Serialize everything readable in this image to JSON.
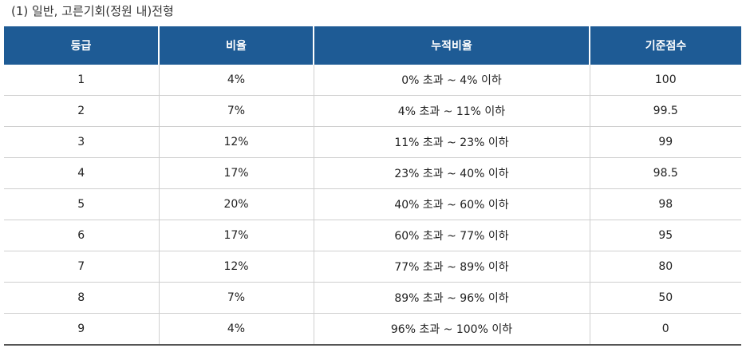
{
  "caption": "(1) 일반, 고른기회(정원 내)전형",
  "table": {
    "headers": [
      "등급",
      "비율",
      "누적비율",
      "기준점수"
    ],
    "rows": [
      [
        "1",
        "4%",
        "0% 초과 ~ 4% 이하",
        "100"
      ],
      [
        "2",
        "7%",
        "4% 초과 ~ 11% 이하",
        "99.5"
      ],
      [
        "3",
        "12%",
        "11% 초과 ~ 23% 이하",
        "99"
      ],
      [
        "4",
        "17%",
        "23% 초과 ~ 40% 이하",
        "98.5"
      ],
      [
        "5",
        "20%",
        "40% 초과 ~ 60% 이하",
        "98"
      ],
      [
        "6",
        "17%",
        "60% 초과 ~ 77% 이하",
        "95"
      ],
      [
        "7",
        "12%",
        "77% 초과 ~ 89% 이하",
        "80"
      ],
      [
        "8",
        "7%",
        "89% 초과 ~ 96% 이하",
        "50"
      ],
      [
        "9",
        "4%",
        "96% 초과 ~ 100% 이하",
        "0"
      ]
    ]
  },
  "colors": {
    "header_bg": "#1e5b95",
    "header_text": "#ffffff",
    "row_border": "#cfcfcf"
  }
}
